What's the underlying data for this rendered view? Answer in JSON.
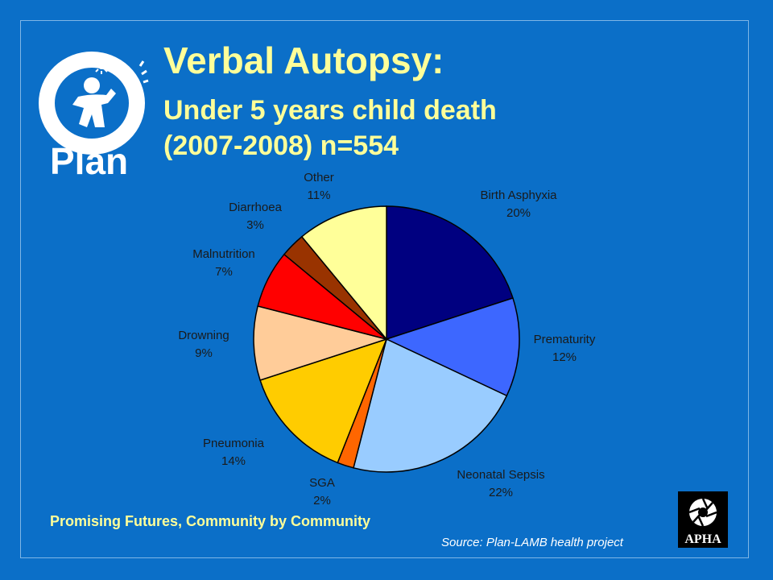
{
  "header": {
    "title_line1": "Verbal Autopsy:",
    "title_line2": "Under 5 years child death",
    "title_line3": "(2007-2008) n=554"
  },
  "logo": {
    "text": "Plan",
    "icon": "plan-child-sun-logo"
  },
  "footer": {
    "tagline": "Promising Futures, Community by Community",
    "source": "Source: Plan-LAMB health project",
    "badge": "APHA",
    "badge_icon": "camera-aperture-logo"
  },
  "colors": {
    "background": "#0b6fc8",
    "title": "#ffff99",
    "slice_outline": "#000000"
  },
  "chart_data": {
    "type": "pie",
    "title": "",
    "start": "12 o'clock, clockwise",
    "slices": [
      {
        "label": "Birth Asphyxia",
        "value": 20,
        "display": "20%",
        "color": "#000080"
      },
      {
        "label": "Prematurity",
        "value": 12,
        "display": "12%",
        "color": "#3d67ff"
      },
      {
        "label": "Neonatal Sepsis",
        "value": 22,
        "display": "22%",
        "color": "#99ccff"
      },
      {
        "label": "SGA",
        "value": 2,
        "display": "2%",
        "color": "#ff6600"
      },
      {
        "label": "Pneumonia",
        "value": 14,
        "display": "14%",
        "color": "#ffcc00"
      },
      {
        "label": "Drowning",
        "value": 9,
        "display": "9%",
        "color": "#ffcc99"
      },
      {
        "label": "Malnutrition",
        "value": 7,
        "display": "7%",
        "color": "#ff0000"
      },
      {
        "label": "Diarrhoea",
        "value": 3,
        "display": "3%",
        "color": "#993300"
      },
      {
        "label": "Other",
        "value": 11,
        "display": "11%",
        "color": "#ffff99"
      }
    ]
  }
}
